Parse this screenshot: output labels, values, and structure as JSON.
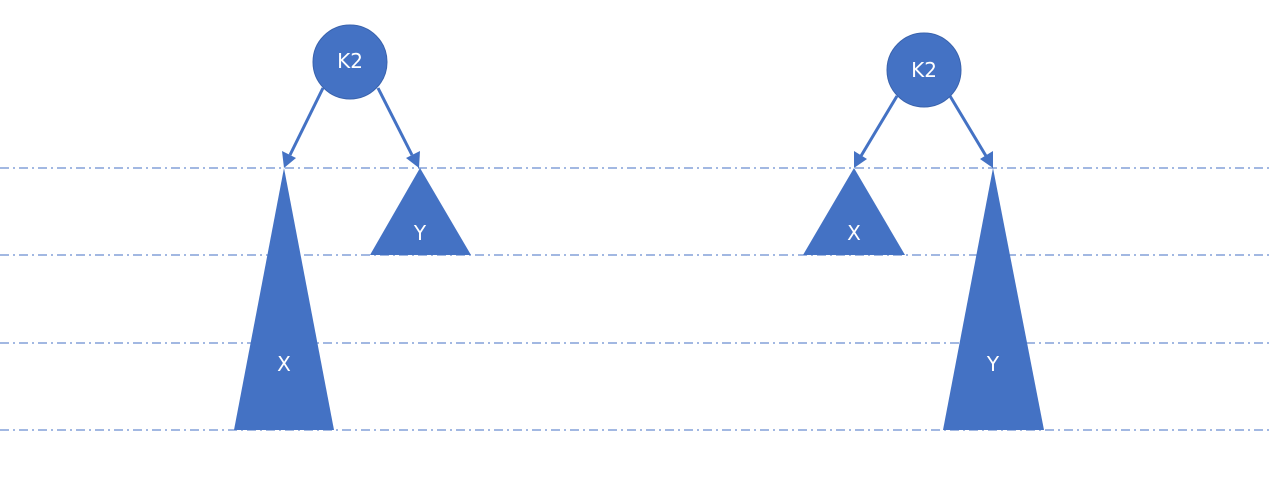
{
  "left_tree": {
    "root_label": "K2",
    "left_subtree_label": "X",
    "right_subtree_label": "Y"
  },
  "right_tree": {
    "root_label": "K2",
    "left_subtree_label": "X",
    "right_subtree_label": "Y"
  },
  "colors": {
    "fill": "#4472c4",
    "label": "#ffffff",
    "background": "#ffffff"
  }
}
